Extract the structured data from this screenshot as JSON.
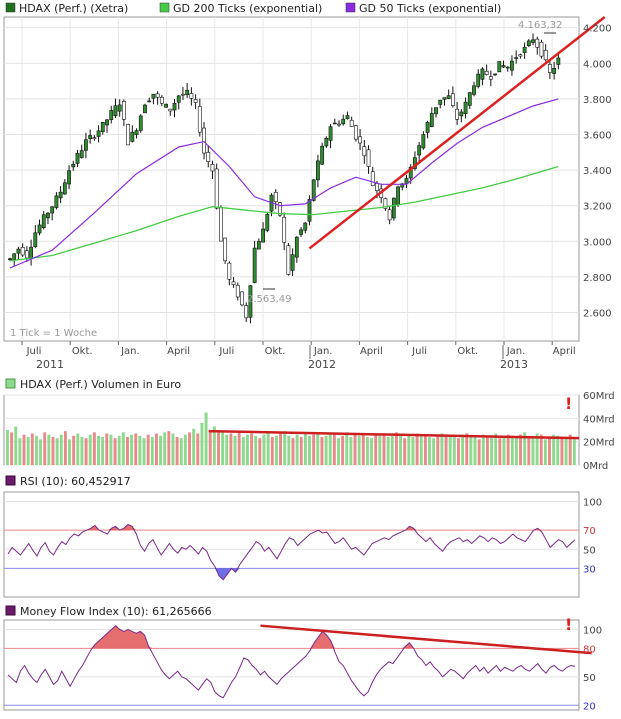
{
  "chart_data": [
    {
      "type": "candlestick",
      "legend": [
        {
          "name": "HDAX (Perf.) (Xetra)",
          "color": "#1f6f1f"
        },
        {
          "name": "GD 200 Ticks (exponential)",
          "color": "#44cc44"
        },
        {
          "name": "GD 50 Ticks (exponential)",
          "color": "#8a2be2"
        }
      ],
      "note": "1 Tick = 1 Woche",
      "ylim": [
        2440,
        4260
      ],
      "yticks": [
        "2.600",
        "2.800",
        "3.000",
        "3.200",
        "3.400",
        "3.600",
        "3.800",
        "4.000",
        "4.200"
      ],
      "ytick_values": [
        2600,
        2800,
        3000,
        3200,
        3400,
        3600,
        3800,
        4000,
        4200
      ],
      "x_months": [
        "Juli",
        "Okt.",
        "Jan.",
        "April",
        "Juli",
        "Okt.",
        "Jan.",
        "April",
        "Juli",
        "Okt.",
        "Jan.",
        "April"
      ],
      "x_years": [
        "2011",
        "2012",
        "2013"
      ],
      "high_label": "4.163,32",
      "low_label": "2.563,49",
      "price_path": [
        [
          0,
          2900
        ],
        [
          2,
          2960
        ],
        [
          4,
          2920
        ],
        [
          6,
          3050
        ],
        [
          8,
          3130
        ],
        [
          10,
          3200
        ],
        [
          12,
          3280
        ],
        [
          14,
          3400
        ],
        [
          16,
          3480
        ],
        [
          18,
          3560
        ],
        [
          20,
          3600
        ],
        [
          22,
          3650
        ],
        [
          24,
          3720
        ],
        [
          26,
          3780
        ],
        [
          28,
          3560
        ],
        [
          30,
          3640
        ],
        [
          32,
          3780
        ],
        [
          34,
          3830
        ],
        [
          36,
          3770
        ],
        [
          38,
          3740
        ],
        [
          40,
          3820
        ],
        [
          42,
          3830
        ],
        [
          44,
          3760
        ],
        [
          46,
          3500
        ],
        [
          48,
          3400
        ],
        [
          50,
          3000
        ],
        [
          52,
          2780
        ],
        [
          54,
          2700
        ],
        [
          56,
          2580
        ],
        [
          58,
          2960
        ],
        [
          60,
          3060
        ],
        [
          62,
          3260
        ],
        [
          64,
          3150
        ],
        [
          66,
          2820
        ],
        [
          68,
          3020
        ],
        [
          70,
          3100
        ],
        [
          72,
          3350
        ],
        [
          74,
          3520
        ],
        [
          76,
          3650
        ],
        [
          78,
          3670
        ],
        [
          80,
          3700
        ],
        [
          82,
          3590
        ],
        [
          84,
          3500
        ],
        [
          86,
          3320
        ],
        [
          88,
          3260
        ],
        [
          90,
          3130
        ],
        [
          92,
          3320
        ],
        [
          94,
          3340
        ],
        [
          96,
          3480
        ],
        [
          98,
          3600
        ],
        [
          100,
          3720
        ],
        [
          102,
          3800
        ],
        [
          104,
          3810
        ],
        [
          106,
          3690
        ],
        [
          108,
          3770
        ],
        [
          110,
          3890
        ],
        [
          112,
          3950
        ],
        [
          114,
          3930
        ],
        [
          116,
          3990
        ],
        [
          118,
          3980
        ],
        [
          120,
          4040
        ],
        [
          122,
          4080
        ],
        [
          124,
          4140
        ],
        [
          126,
          4060
        ],
        [
          128,
          3940
        ],
        [
          130,
          4020
        ]
      ],
      "ema50_path": [
        [
          0,
          2850
        ],
        [
          10,
          2950
        ],
        [
          20,
          3160
        ],
        [
          30,
          3380
        ],
        [
          40,
          3530
        ],
        [
          46,
          3560
        ],
        [
          52,
          3420
        ],
        [
          58,
          3250
        ],
        [
          64,
          3200
        ],
        [
          70,
          3210
        ],
        [
          76,
          3300
        ],
        [
          82,
          3360
        ],
        [
          88,
          3320
        ],
        [
          94,
          3320
        ],
        [
          100,
          3440
        ],
        [
          106,
          3550
        ],
        [
          112,
          3640
        ],
        [
          118,
          3700
        ],
        [
          124,
          3760
        ],
        [
          130,
          3800
        ]
      ],
      "ema200_path": [
        [
          0,
          2890
        ],
        [
          10,
          2920
        ],
        [
          20,
          2990
        ],
        [
          30,
          3060
        ],
        [
          40,
          3140
        ],
        [
          48,
          3195
        ],
        [
          56,
          3175
        ],
        [
          64,
          3155
        ],
        [
          72,
          3150
        ],
        [
          80,
          3170
        ],
        [
          88,
          3190
        ],
        [
          96,
          3220
        ],
        [
          104,
          3260
        ],
        [
          112,
          3300
        ],
        [
          120,
          3350
        ],
        [
          130,
          3420
        ]
      ],
      "trendline": {
        "from": [
          71,
          2960
        ],
        "to": [
          141,
          4260
        ]
      },
      "x_domain": [
        0,
        133
      ],
      "month_ticks": [
        6,
        19,
        32,
        45,
        58,
        71,
        84,
        97,
        110,
        123,
        136,
        149
      ]
    },
    {
      "type": "bar",
      "title": "HDAX (Perf.) Volumen in Euro",
      "ylim": [
        0,
        60
      ],
      "yticks": [
        "0Mrd",
        "20Mrd",
        "40Mrd",
        "60Mrd"
      ],
      "ytick_values": [
        0,
        20,
        40,
        60
      ],
      "alert_glyph": "!",
      "values": [
        30,
        28,
        33,
        23,
        26,
        24,
        27,
        25,
        22,
        28,
        26,
        24,
        23,
        26,
        29,
        22,
        25,
        27,
        24,
        23,
        26,
        28,
        25,
        24,
        27,
        26,
        23,
        25,
        28,
        24,
        26,
        27,
        25,
        23,
        26,
        24,
        27,
        25,
        28,
        29,
        27,
        24,
        23,
        26,
        28,
        31,
        27,
        36,
        45,
        30,
        33,
        28,
        29,
        26,
        27,
        25,
        28,
        24,
        26,
        27,
        25,
        23,
        26,
        28,
        24,
        25,
        27,
        29,
        25,
        23,
        26,
        24,
        27,
        25,
        26,
        28,
        24,
        25,
        27,
        26,
        23,
        25,
        28,
        24,
        26,
        25,
        27,
        24,
        23,
        26,
        25,
        27,
        24,
        26,
        28,
        25,
        23,
        26,
        24,
        27,
        25,
        26,
        24,
        23,
        25,
        27,
        26,
        24,
        25,
        23,
        26,
        27,
        24,
        25,
        22,
        26,
        24,
        25,
        27,
        23,
        24,
        26,
        25,
        24,
        26,
        28,
        25,
        24,
        27,
        26,
        22,
        24,
        26,
        25,
        23,
        24,
        26,
        22
      ],
      "up_color": "#8fd98f",
      "down_color": "#e88a8a",
      "trendline": {
        "from": [
          49,
          29
        ],
        "to": [
          141,
          23
        ]
      }
    },
    {
      "type": "line",
      "title": "RSI (10): 60,452917",
      "ylim": [
        0,
        110
      ],
      "yticks": [
        "30",
        "50",
        "70",
        "100"
      ],
      "ytick_values": [
        30,
        50,
        70,
        100
      ],
      "upper": 70,
      "lower": 30,
      "values": [
        45,
        52,
        48,
        44,
        50,
        56,
        49,
        43,
        52,
        57,
        48,
        44,
        52,
        58,
        55,
        62,
        66,
        64,
        68,
        70,
        72,
        75,
        70,
        68,
        66,
        72,
        74,
        70,
        72,
        76,
        74,
        66,
        54,
        48,
        56,
        60,
        52,
        44,
        50,
        56,
        50,
        46,
        52,
        50,
        54,
        50,
        45,
        52,
        48,
        38,
        32,
        22,
        18,
        24,
        30,
        26,
        34,
        40,
        46,
        52,
        58,
        55,
        48,
        52,
        46,
        40,
        48,
        56,
        62,
        60,
        54,
        58,
        62,
        66,
        68,
        70,
        67,
        68,
        62,
        56,
        58,
        62,
        56,
        50,
        52,
        48,
        44,
        50,
        56,
        58,
        60,
        62,
        60,
        64,
        66,
        68,
        70,
        74,
        72,
        66,
        62,
        58,
        62,
        56,
        52,
        48,
        54,
        58,
        60,
        62,
        58,
        60,
        56,
        60,
        64,
        62,
        58,
        62,
        60,
        56,
        58,
        62,
        66,
        62,
        60,
        58,
        64,
        70,
        72,
        68,
        60,
        52,
        56,
        60,
        58,
        52,
        56,
        60
      ],
      "upper_color": "#e05555",
      "lower_color": "#5555e0"
    },
    {
      "type": "line",
      "title": "Money Flow Index (10): 61,265666",
      "ylim": [
        15,
        110
      ],
      "yticks": [
        "20",
        "50",
        "80",
        "100"
      ],
      "ytick_values": [
        20,
        50,
        80,
        100
      ],
      "upper": 80,
      "lower": 20,
      "alert_glyph": "!",
      "values": [
        52,
        48,
        44,
        56,
        62,
        54,
        48,
        44,
        52,
        58,
        50,
        42,
        46,
        56,
        48,
        40,
        48,
        56,
        62,
        70,
        78,
        84,
        88,
        92,
        96,
        100,
        104,
        100,
        98,
        100,
        98,
        96,
        98,
        94,
        82,
        74,
        66,
        58,
        52,
        48,
        52,
        56,
        50,
        48,
        44,
        40,
        36,
        42,
        48,
        44,
        34,
        30,
        28,
        36,
        44,
        50,
        60,
        70,
        68,
        62,
        58,
        52,
        56,
        50,
        46,
        42,
        48,
        52,
        56,
        60,
        64,
        68,
        72,
        78,
        86,
        92,
        98,
        94,
        88,
        76,
        66,
        62,
        54,
        46,
        40,
        34,
        30,
        34,
        44,
        52,
        58,
        62,
        66,
        64,
        70,
        76,
        82,
        86,
        80,
        72,
        68,
        62,
        66,
        60,
        56,
        50,
        54,
        58,
        56,
        52,
        48,
        54,
        58,
        62,
        56,
        60,
        54,
        58,
        62,
        56,
        60,
        58,
        56,
        60,
        62,
        58,
        56,
        60,
        64,
        58,
        54,
        60,
        62,
        58,
        56,
        60,
        62,
        61
      ],
      "upper_color": "#e05555",
      "trendline": {
        "from": [
          61,
          104
        ],
        "to": [
          141,
          75
        ]
      }
    }
  ]
}
